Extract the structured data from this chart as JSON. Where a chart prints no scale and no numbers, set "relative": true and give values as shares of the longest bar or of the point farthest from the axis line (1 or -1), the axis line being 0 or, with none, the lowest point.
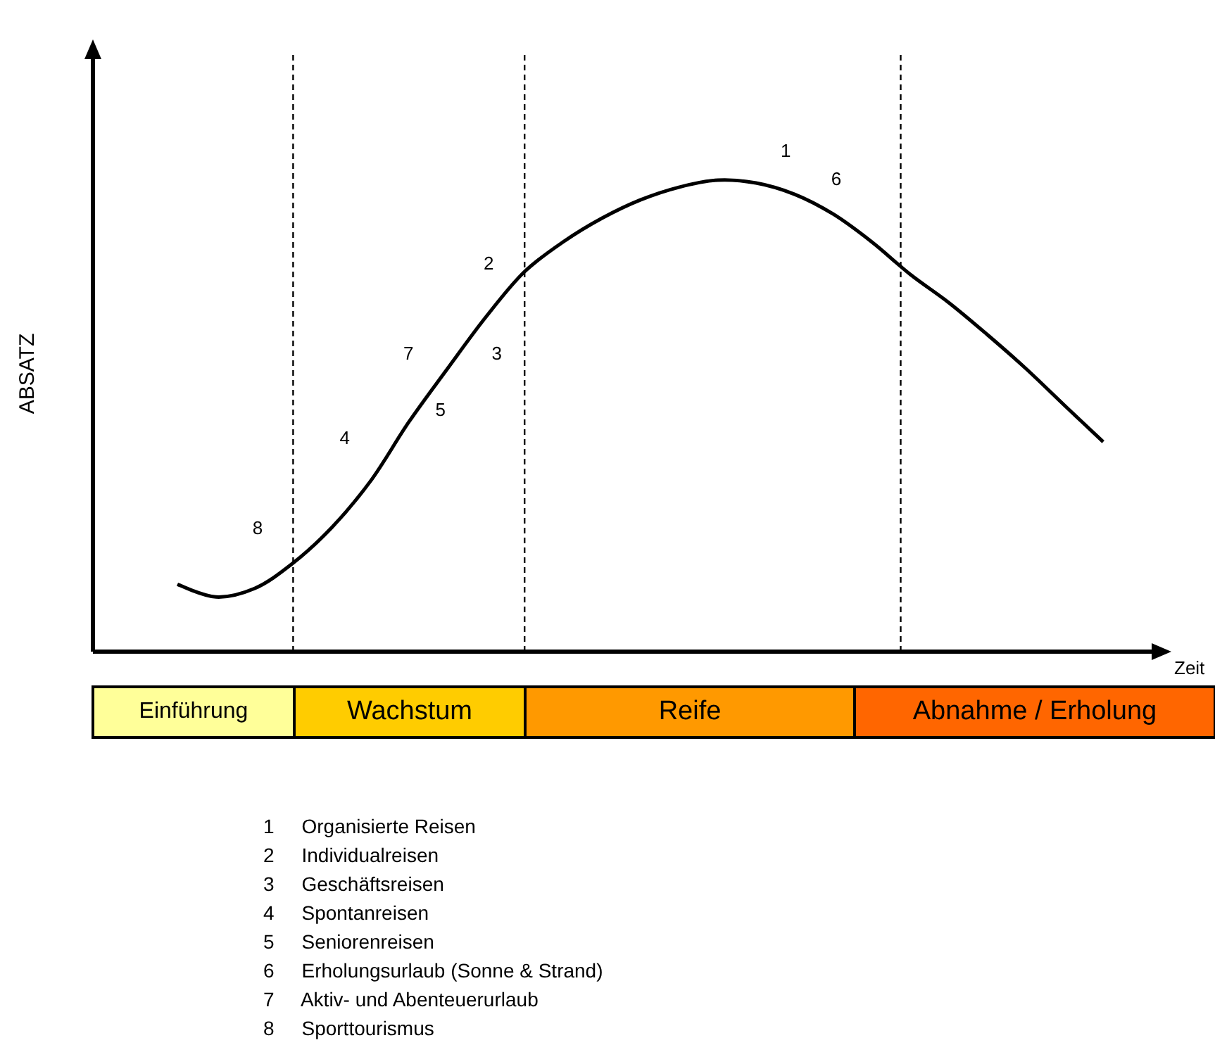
{
  "chart_data": [
    {
      "type": "line",
      "relative": true,
      "ylabel": "ABSATZ",
      "xlabel": "Zeit",
      "marker": "none",
      "line_style": "solid",
      "categories": [
        null,
        null,
        null,
        null,
        null,
        null,
        null,
        null,
        null,
        null,
        null,
        null,
        null,
        null,
        null,
        null,
        null,
        null,
        null,
        null,
        null,
        null,
        null,
        null,
        null
      ],
      "series": [
        {
          "color": "#000000",
          "values": [
            0.143,
            0.116,
            0.134,
            0.188,
            0.263,
            0.361,
            0.487,
            0.6,
            0.71,
            0.806,
            0.869,
            0.919,
            0.958,
            0.985,
            1,
            0.994,
            0.97,
            0.928,
            0.869,
            0.8,
            0.74,
            0.672,
            0.6,
            0.522,
            0.445
          ]
        }
      ],
      "annotations": [
        "1",
        "6",
        "2",
        "7",
        "3",
        "5",
        "4",
        "8"
      ]
    },
    {
      "type": "other",
      "categories": [
        "Einführung",
        "Wachstum",
        "Reife",
        "Abnahme / Erholung"
      ],
      "colors": [
        "#ffff99",
        "#ffcc00",
        "#ff9900",
        "#ff6600"
      ],
      "annotations": [
        "1 Organisierte Reisen",
        "2 Individualreisen",
        "3 Geschäftsreisen",
        "4 Spontanreisen",
        "5 Seniorenreisen",
        "6 Erholungsurlaub (Sonne & Strand)",
        "7 Aktiv- und Abenteuerurlaub",
        "8 Sporttourismus"
      ]
    }
  ]
}
